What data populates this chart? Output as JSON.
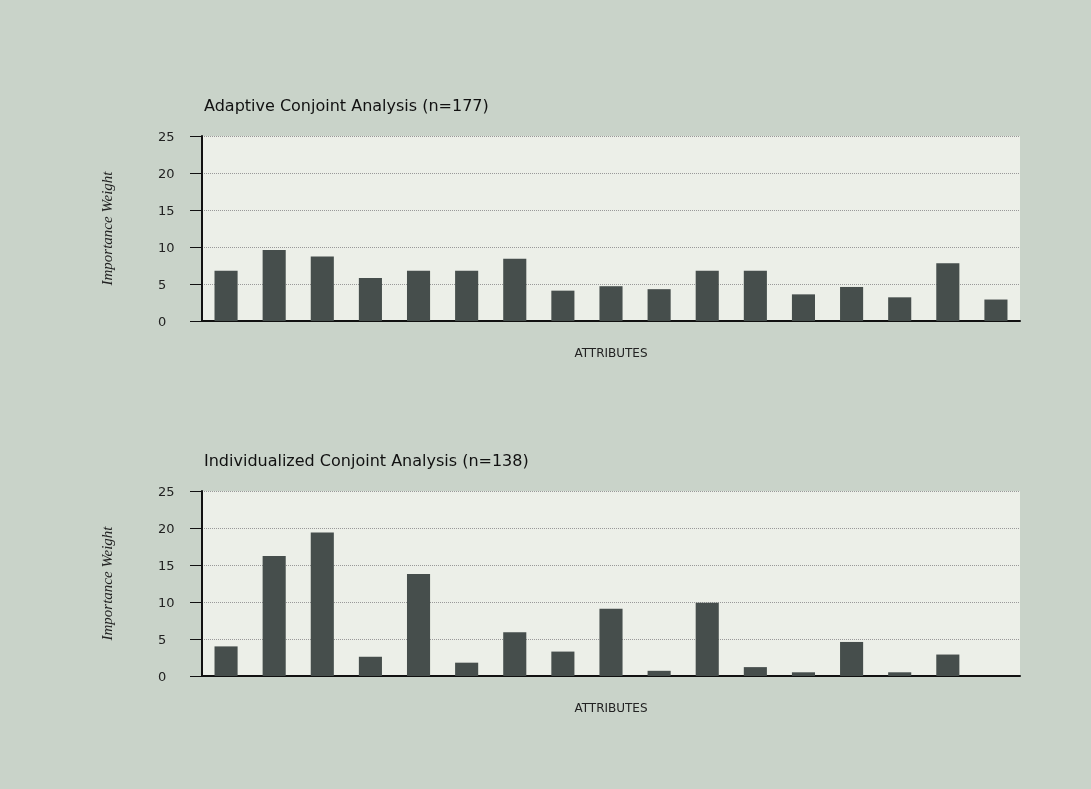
{
  "chart_data": [
    {
      "type": "bar",
      "title": "Adaptive Conjoint Analysis (n=177)",
      "xlabel": "ATTRIBUTES",
      "ylabel": "Importance Weight",
      "categories": [
        null,
        null,
        null,
        null,
        null,
        null,
        null,
        null,
        null,
        null,
        null,
        null,
        null,
        null,
        null,
        null,
        null
      ],
      "values": [
        6.8,
        9.6,
        8.7,
        5.8,
        6.8,
        6.8,
        8.4,
        4.1,
        4.7,
        4.3,
        6.8,
        6.8,
        3.6,
        4.6,
        3.2,
        7.8,
        2.9
      ],
      "color": "#464e4c",
      "ylim": [
        0,
        25
      ],
      "yticks": [
        0,
        5,
        10,
        15,
        20,
        25
      ],
      "grid": "y"
    },
    {
      "type": "bar",
      "title": "Individualized Conjoint Analysis (n=138)",
      "xlabel": "ATTRIBUTES",
      "ylabel": "Importance Weight",
      "categories": [
        null,
        null,
        null,
        null,
        null,
        null,
        null,
        null,
        null,
        null,
        null,
        null,
        null,
        null,
        null,
        null,
        null
      ],
      "values": [
        4.0,
        16.2,
        19.4,
        2.6,
        13.8,
        1.8,
        5.9,
        3.3,
        9.1,
        0.7,
        9.9,
        1.2,
        0.5,
        4.6,
        0.5,
        2.9,
        null
      ],
      "color": "#464e4c",
      "ylim": [
        0,
        25
      ],
      "yticks": [
        0,
        5,
        10,
        15,
        20,
        25
      ],
      "grid": "y"
    }
  ]
}
